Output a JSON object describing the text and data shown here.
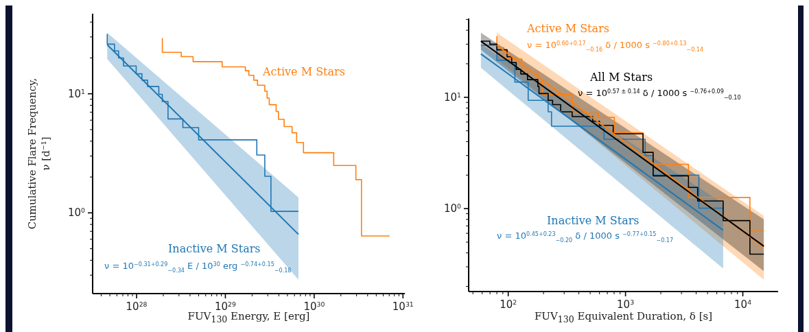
{
  "chart_data": [
    {
      "type": "line",
      "xlabel": "FUV$_{130}$ Energy, E [erg]",
      "ylabel": "Cumulative Flare Frequency, ν [d⁻¹]",
      "log": "xy",
      "xlim": [
        3.2e+27,
        1.05e+31
      ],
      "ylim": [
        0.21,
        47
      ],
      "xticks": [
        {
          "value": 4e+27,
          "label": null
        },
        {
          "value": 5e+27,
          "label": null
        },
        {
          "value": 6e+27,
          "label": null
        },
        {
          "value": 7e+27,
          "label": null
        },
        {
          "value": 8e+27,
          "label": null
        },
        {
          "value": 9e+27,
          "label": null
        },
        {
          "value": 1e+28,
          "label": "10$^{28}$"
        },
        {
          "value": 2e+28,
          "label": null
        },
        {
          "value": 3e+28,
          "label": null
        },
        {
          "value": 4e+28,
          "label": null
        },
        {
          "value": 5e+28,
          "label": null
        },
        {
          "value": 6e+28,
          "label": null
        },
        {
          "value": 7e+28,
          "label": null
        },
        {
          "value": 8e+28,
          "label": null
        },
        {
          "value": 9e+28,
          "label": null
        },
        {
          "value": 1e+29,
          "label": "10$^{29}$"
        },
        {
          "value": 2e+29,
          "label": null
        },
        {
          "value": 3e+29,
          "label": null
        },
        {
          "value": 4e+29,
          "label": null
        },
        {
          "value": 5e+29,
          "label": null
        },
        {
          "value": 6e+29,
          "label": null
        },
        {
          "value": 7e+29,
          "label": null
        },
        {
          "value": 8e+29,
          "label": null
        },
        {
          "value": 9e+29,
          "label": null
        },
        {
          "value": 1e+30,
          "label": "10$^{30}$"
        },
        {
          "value": 2e+30,
          "label": null
        },
        {
          "value": 3e+30,
          "label": null
        },
        {
          "value": 4e+30,
          "label": null
        },
        {
          "value": 5e+30,
          "label": null
        },
        {
          "value": 6e+30,
          "label": null
        },
        {
          "value": 7e+30,
          "label": null
        },
        {
          "value": 8e+30,
          "label": null
        },
        {
          "value": 9e+30,
          "label": null
        },
        {
          "value": 1e+31,
          "label": "10$^{31}$"
        }
      ],
      "yticks": [
        {
          "value": 0.3,
          "label": null
        },
        {
          "value": 0.4,
          "label": null
        },
        {
          "value": 0.5,
          "label": null
        },
        {
          "value": 0.6,
          "label": null
        },
        {
          "value": 0.7,
          "label": null
        },
        {
          "value": 0.8,
          "label": null
        },
        {
          "value": 0.9,
          "label": null
        },
        {
          "value": 1,
          "label": "10$^{0}$"
        },
        {
          "value": 2,
          "label": null
        },
        {
          "value": 3,
          "label": null
        },
        {
          "value": 4,
          "label": null
        },
        {
          "value": 5,
          "label": null
        },
        {
          "value": 6,
          "label": null
        },
        {
          "value": 7,
          "label": null
        },
        {
          "value": 8,
          "label": null
        },
        {
          "value": 9,
          "label": null
        },
        {
          "value": 10,
          "label": "10$^{1}$"
        },
        {
          "value": 20,
          "label": null
        },
        {
          "value": 30,
          "label": null
        },
        {
          "value": 40,
          "label": null
        }
      ],
      "series": [
        {
          "type": "step",
          "color": "#1f77b4",
          "x": [
            4.67e+27,
            4.67e+27,
            5.64e+27,
            6.27e+27,
            7.14e+27,
            9.9e+27,
            1.15e+28,
            1.33e+28,
            1.78e+28,
            1.95e+28,
            2.26e+28,
            3.32e+28,
            5e+28,
            2.26e+29,
            2.78e+29,
            3.26e+29,
            6.65e+29
          ],
          "values": [
            31.8,
            26.1,
            22.9,
            20.0,
            17.1,
            14.7,
            13.0,
            11.5,
            9.9,
            8.6,
            6.15,
            5.2,
            4.1,
            3.06,
            2.03,
            1.03,
            1.03
          ]
        },
        {
          "type": "line",
          "name": "Inactive M Stars",
          "color": "#1f77b4",
          "x": [
            4.67e+27,
            6.65e+29
          ],
          "values": [
            25.8,
            0.66
          ],
          "lower": [
            19.6,
            0.275
          ],
          "upper": [
            32.5,
            1.35
          ]
        },
        {
          "type": "step",
          "name": "Active M Stars",
          "color": "#ff7f0e",
          "x": [
            1.95e+28,
            1.95e+28,
            3.18e+28,
            4.33e+28,
            9.2e+28,
            1.68e+29,
            1.84e+29,
            2.09e+29,
            2.3e+29,
            2.78e+29,
            2.95e+29,
            3.12e+29,
            3.73e+29,
            3.96e+29,
            4.59e+29,
            5.64e+29,
            6.35e+29,
            7.58e+29,
            1.66e+30,
            2.95e+30,
            3.41e+30,
            7.06e+30
          ],
          "values": [
            29.4,
            22.3,
            20.5,
            18.6,
            16.8,
            15.6,
            14.3,
            13.0,
            11.8,
            10.5,
            9.2,
            8.1,
            7.1,
            6.1,
            5.3,
            4.7,
            3.9,
            3.2,
            2.5,
            1.9,
            0.64,
            0.64
          ]
        }
      ],
      "annotations": [
        "ν = 10$^{−0.31}$$^{+0.29}$$_{−0.34}$ E / 10$^{30}$ erg $^{−0.74}$$^{+0.15}$$_{−0.18}$"
      ]
    },
    {
      "type": "line",
      "xlabel": "FUV$_{130}$ Equivalent Duration, δ [s]",
      "log": "xy",
      "xlim": [
        46,
        20000
      ],
      "ylim": [
        0.18,
        51
      ],
      "xticks": [
        {
          "value": 50,
          "label": null
        },
        {
          "value": 60,
          "label": null
        },
        {
          "value": 70,
          "label": null
        },
        {
          "value": 80,
          "label": null
        },
        {
          "value": 90,
          "label": null
        },
        {
          "value": 100,
          "label": "10$^{2}$"
        },
        {
          "value": 200,
          "label": null
        },
        {
          "value": 300,
          "label": null
        },
        {
          "value": 400,
          "label": null
        },
        {
          "value": 500,
          "label": null
        },
        {
          "value": 600,
          "label": null
        },
        {
          "value": 700,
          "label": null
        },
        {
          "value": 800,
          "label": null
        },
        {
          "value": 900,
          "label": null
        },
        {
          "value": 1000,
          "label": "10$^{3}$"
        },
        {
          "value": 2000,
          "label": null
        },
        {
          "value": 3000,
          "label": null
        },
        {
          "value": 4000,
          "label": null
        },
        {
          "value": 5000,
          "label": null
        },
        {
          "value": 6000,
          "label": null
        },
        {
          "value": 7000,
          "label": null
        },
        {
          "value": 8000,
          "label": null
        },
        {
          "value": 9000,
          "label": null
        },
        {
          "value": 10000,
          "label": "10$^{4}$"
        }
      ],
      "yticks": [
        {
          "value": 0.2,
          "label": null
        },
        {
          "value": 0.3,
          "label": null
        },
        {
          "value": 0.4,
          "label": null
        },
        {
          "value": 0.5,
          "label": null
        },
        {
          "value": 0.6,
          "label": null
        },
        {
          "value": 0.7,
          "label": null
        },
        {
          "value": 0.8,
          "label": null
        },
        {
          "value": 0.9,
          "label": null
        },
        {
          "value": 1,
          "label": "10$^{0}$"
        },
        {
          "value": 2,
          "label": null
        },
        {
          "value": 3,
          "label": null
        },
        {
          "value": 4,
          "label": null
        },
        {
          "value": 5,
          "label": null
        },
        {
          "value": 6,
          "label": null
        },
        {
          "value": 7,
          "label": null
        },
        {
          "value": 8,
          "label": null
        },
        {
          "value": 9,
          "label": null
        },
        {
          "value": 10,
          "label": "10$^{1}$"
        },
        {
          "value": 20,
          "label": null
        },
        {
          "value": 30,
          "label": null
        },
        {
          "value": 40,
          "label": null
        },
        {
          "value": 50,
          "label": null
        }
      ],
      "series": [
        {
          "type": "step",
          "color": "#1f77b4",
          "x": [
            58.5,
            80,
            102,
            114,
            148,
            219,
            234,
            656,
            1470,
            1720,
            4220,
            6800
          ],
          "values": [
            29.3,
            21.5,
            20.5,
            13.7,
            9.4,
            7.4,
            5.5,
            4.2,
            3.0,
            2.0,
            1.01,
            1.01
          ]
        },
        {
          "type": "step",
          "color": "#ff7f0e",
          "x": [
            80,
            80,
            91.4,
            131,
            179,
            196,
            351,
            587,
            803,
            1410,
            1720,
            3440,
            11500,
            15100
          ],
          "values": [
            35.4,
            28.0,
            22.1,
            17.0,
            13.7,
            10.6,
            7.2,
            6.6,
            4.8,
            3.2,
            2.5,
            1.26,
            0.63,
            0.63
          ]
        },
        {
          "type": "step",
          "color": "#000000",
          "x": [
            58.5,
            69.8,
            80,
            97.8,
            107,
            117,
            128,
            146,
            179,
            183,
            219,
            239,
            280,
            351,
            525,
            600,
            785,
            1410,
            1720,
            3440,
            4120,
            6800,
            11500,
            15100
          ],
          "values": [
            31.9,
            30.0,
            26.7,
            23.1,
            20.5,
            17.8,
            16.2,
            14.4,
            12.5,
            10.8,
            9.4,
            8.6,
            7.4,
            6.7,
            6.1,
            5.6,
            4.7,
            3.2,
            1.97,
            1.55,
            1.17,
            0.78,
            0.39,
            0.39
          ]
        },
        {
          "type": "line",
          "name": "Active M Stars",
          "color": "#ff7f0e",
          "x": [
            80,
            15100
          ],
          "values": [
            29.3,
            0.45
          ],
          "lower": [
            22.1,
            0.23
          ],
          "upper": [
            38,
            0.86
          ]
        },
        {
          "type": "line",
          "name": "All M Stars",
          "color": "#000000",
          "x": [
            58.5,
            15100
          ],
          "values": [
            31.9,
            0.46
          ],
          "lower": [
            26.7,
            0.275
          ],
          "upper": [
            38,
            0.8
          ]
        },
        {
          "type": "line",
          "name": "Inactive M Stars",
          "color": "#1f77b4",
          "x": [
            58.5,
            6800
          ],
          "values": [
            24.5,
            0.64
          ],
          "lower": [
            18.4,
            0.29
          ],
          "upper": [
            30,
            1.11
          ]
        }
      ],
      "annotations": [
        "ν = 10$^{0.60}$$^{+0.17}$$_{−0.16}$ δ / 1000 s $^{−0.80}$$^{+0.13}$$_{−0.14}$",
        "ν = 10$^{0.57 ± 0.14}$ δ / 1000 s $^{−0.76}$$^{+0.09}$$_{−0.10}$",
        "ν = 10$^{0.45}$$^{+0.23}$$_{−0.20}$ δ / 1000 s $^{−0.77}$$^{+0.15}$$_{−0.17}$"
      ]
    }
  ]
}
